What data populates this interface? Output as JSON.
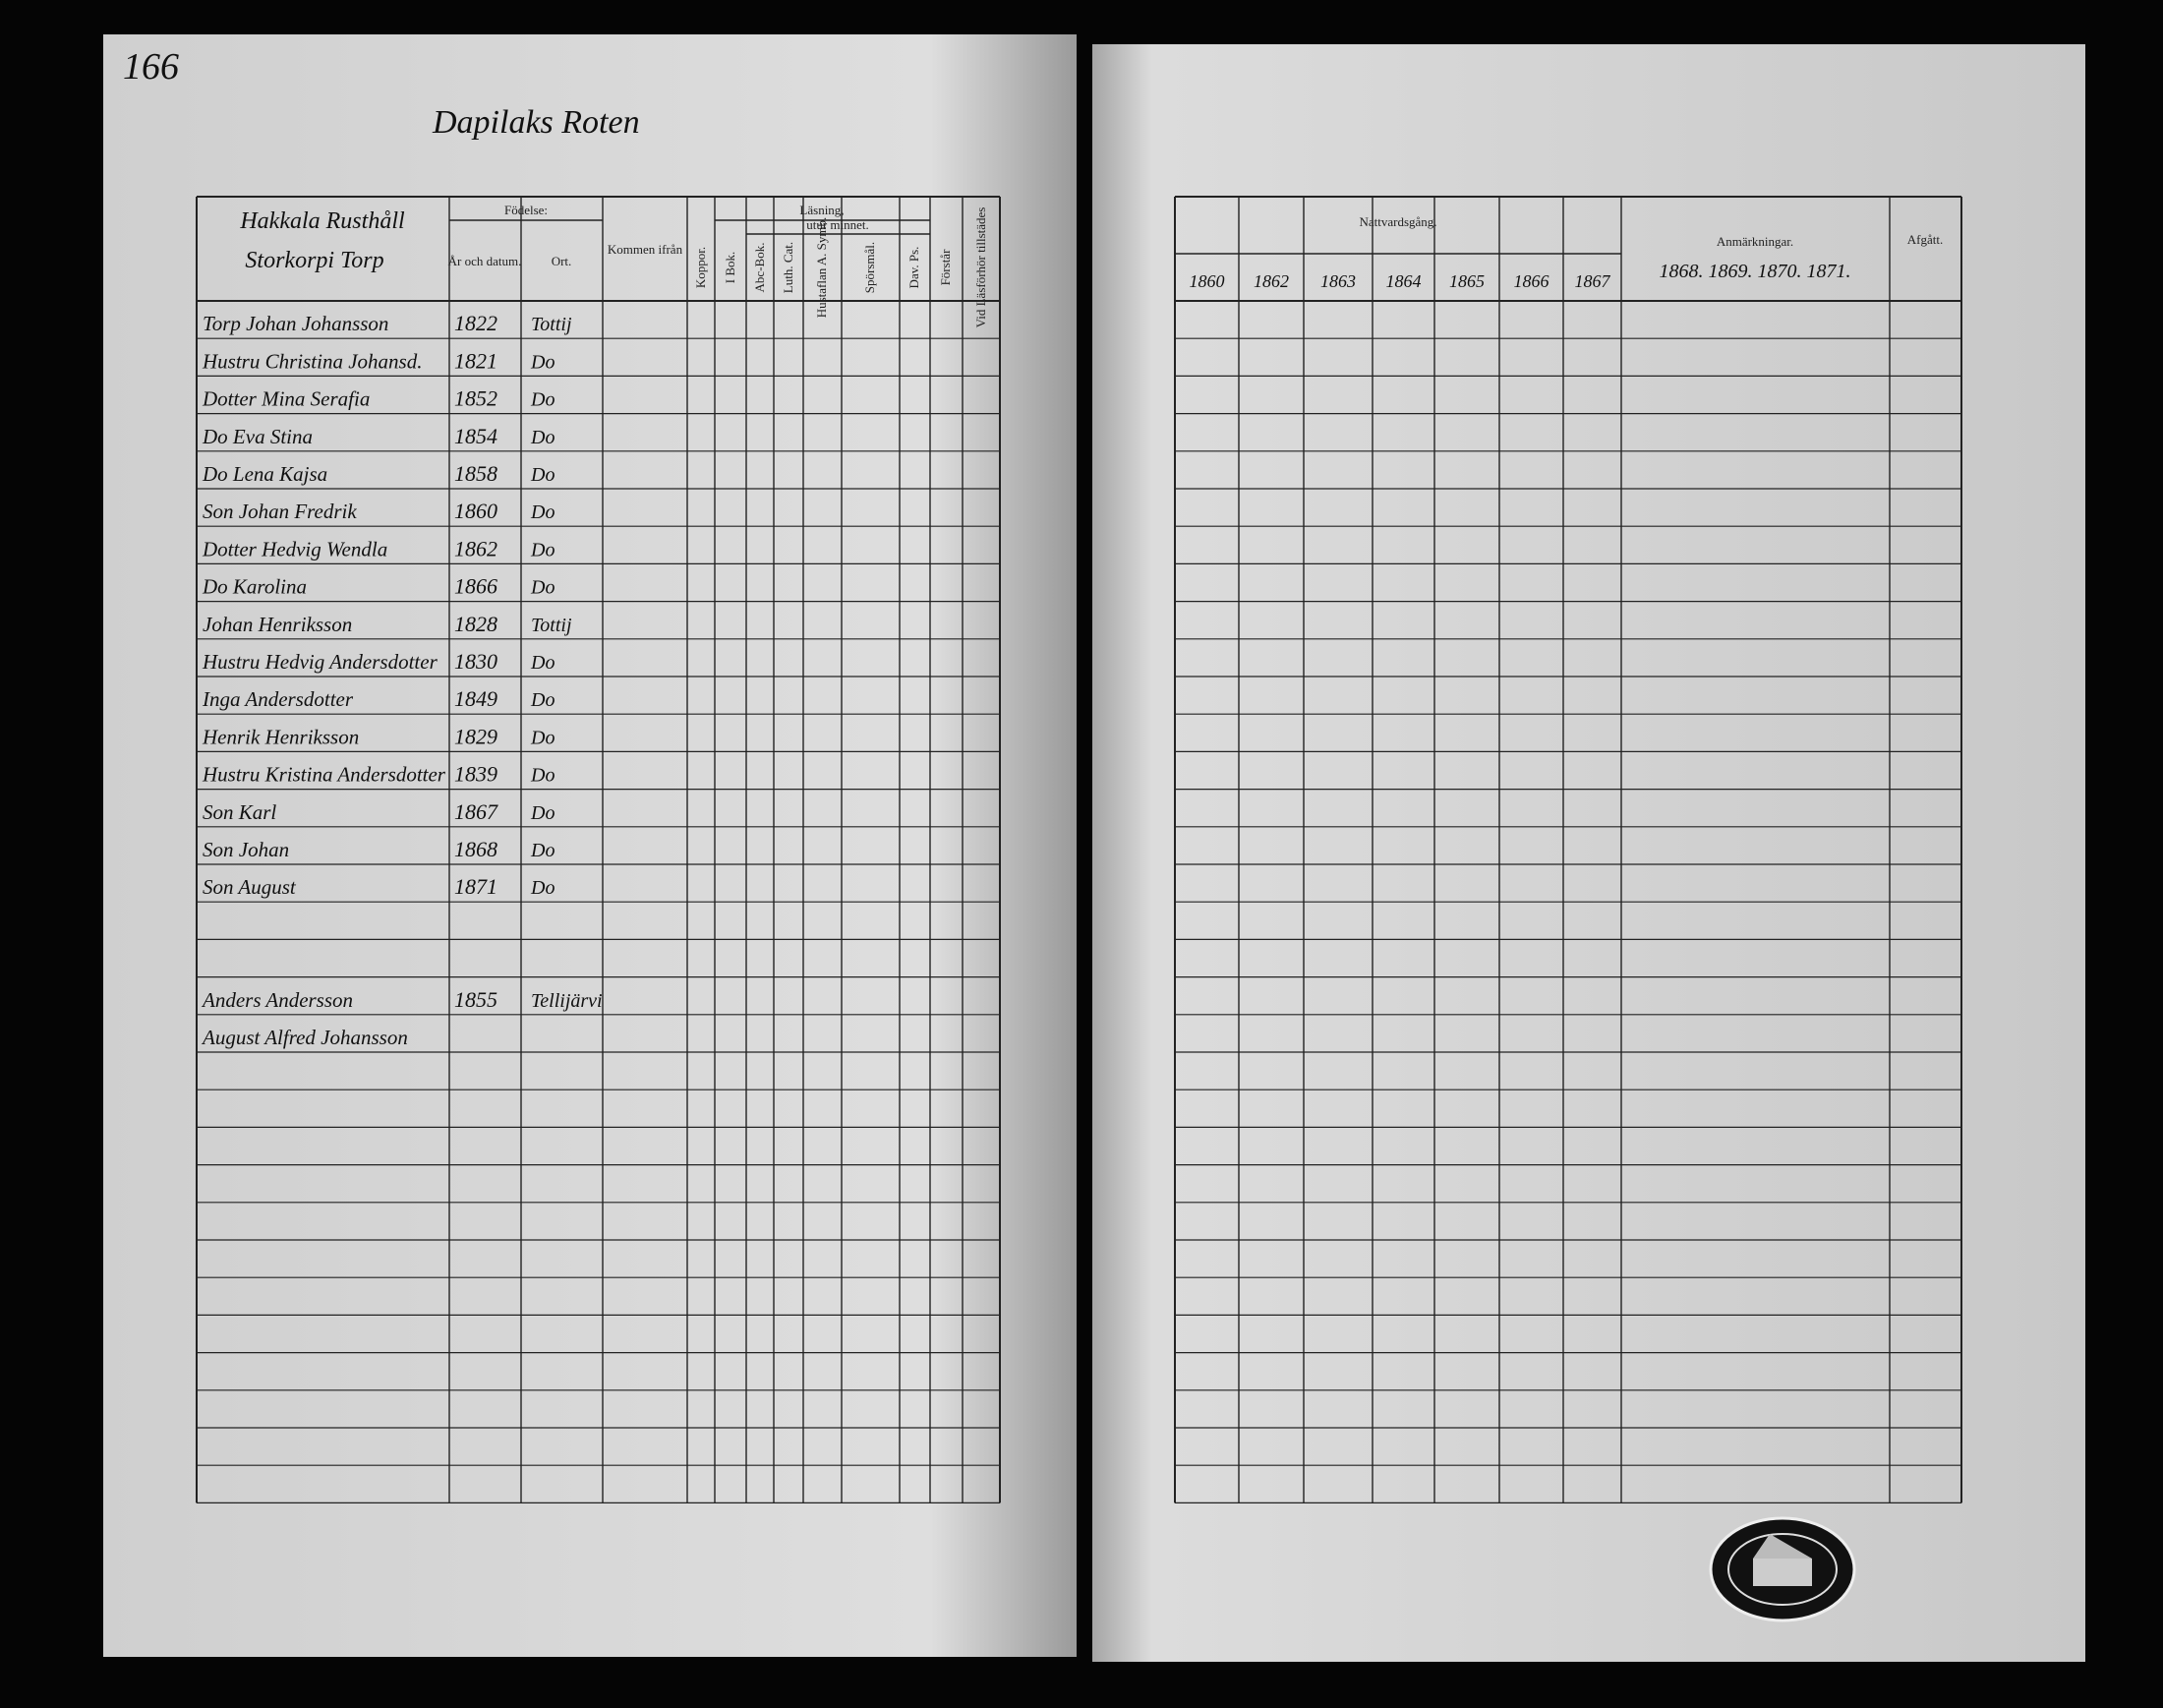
{
  "page_number": "166",
  "heading": "Dapilaks Roten",
  "left_table": {
    "village": "Hakkala Rusthåll",
    "farm": "Storkorpi Torp",
    "headers": {
      "birth": "Födelse:",
      "year_date": "År och datum.",
      "place": "Ort.",
      "came_from": "Kommen ifrån",
      "smallpox": "Koppor.",
      "reading": "Läsning,",
      "by_heart": "utur minnet.",
      "book": "I Bok.",
      "abc": "Abc-Bok.",
      "catechism": "Luth. Cat.",
      "house_table": "Hustaflan A. Symb.",
      "questions": "Spörsmål.",
      "psalms": "Dav. Ps.",
      "understands": "Förstår",
      "present": "Vid Läsförhör tillstädes"
    },
    "rows": [
      {
        "name": "Torp Johan Johansson",
        "born": "1822",
        "place": "Tottij"
      },
      {
        "name": "Hustru Christina Johansd.",
        "born": "1821",
        "place": "Do"
      },
      {
        "name": "Dotter Mina Serafia",
        "born": "1852",
        "place": "Do"
      },
      {
        "name": "Do Eva Stina",
        "born": "1854",
        "place": "Do"
      },
      {
        "name": "Do Lena Kajsa",
        "born": "1858",
        "place": "Do"
      },
      {
        "name": "Son Johan Fredrik",
        "born": "1860",
        "place": "Do"
      },
      {
        "name": "Dotter Hedvig Wendla",
        "born": "1862",
        "place": "Do"
      },
      {
        "name": "Do Karolina",
        "born": "1866",
        "place": "Do"
      },
      {
        "name": "Johan Henriksson",
        "born": "1828",
        "place": "Tottij"
      },
      {
        "name": "Hustru Hedvig Andersdotter",
        "born": "1830",
        "place": "Do"
      },
      {
        "name": "Inga Andersdotter",
        "born": "1849",
        "place": "Do"
      },
      {
        "name": "Henrik Henriksson",
        "born": "1829",
        "place": "Do"
      },
      {
        "name": "Hustru Kristina Andersdotter",
        "born": "1839",
        "place": "Do"
      },
      {
        "name": "Son Karl",
        "born": "1867",
        "place": "Do"
      },
      {
        "name": "Son Johan",
        "born": "1868",
        "place": "Do"
      },
      {
        "name": "Son August",
        "born": "1871",
        "place": "Do"
      }
    ],
    "later_rows": [
      {
        "name": "Anders Andersson",
        "born": "1855",
        "place": "Tellijärvi"
      },
      {
        "name": "August Alfred Johansson"
      }
    ]
  },
  "right_table": {
    "communion": "Nattvardsgång.",
    "years": [
      "1860",
      "1862",
      "1863",
      "1864",
      "1865",
      "1866",
      "1867"
    ],
    "remarks": "Anmärkningar.",
    "remark_years": "1868. 1869. 1870. 1871.",
    "departed": "Afgått."
  }
}
